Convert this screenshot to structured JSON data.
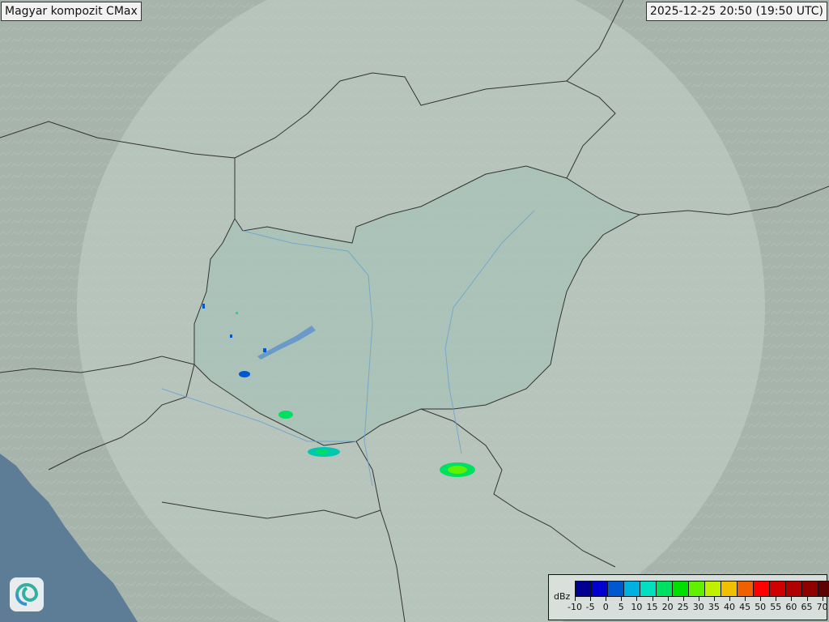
{
  "header": {
    "title": "Magyar kompozit  CMax",
    "timestamp": "2025-12-25 20:50 (19:50 UTC)"
  },
  "map": {
    "background_color": "#a6b4ab",
    "coverage_color": "#c3d1c9",
    "country_fill": "#a7c2b7",
    "sea_color": "#5d7d96",
    "border_color": "#333333",
    "river_color": "#6aa0d0"
  },
  "echoes": [
    {
      "id": "echo-sw-1",
      "color": "#00b0e0"
    },
    {
      "id": "echo-sw-2",
      "color": "#00e060"
    },
    {
      "id": "echo-drava",
      "color": "#00c8b0"
    },
    {
      "id": "echo-south",
      "color": "#00e060"
    },
    {
      "id": "echo-west",
      "color": "#0060d0"
    }
  ],
  "legend": {
    "unit": "dBz",
    "colors": [
      "#000090",
      "#0000d0",
      "#0058d0",
      "#00b0e0",
      "#00e0c0",
      "#00e060",
      "#00e000",
      "#60f000",
      "#c0f000",
      "#f0c000",
      "#f06000",
      "#ff0000",
      "#d00000",
      "#b00000",
      "#900000",
      "#600000"
    ],
    "ticks": [
      "-10",
      "-5",
      "0",
      "5",
      "10",
      "15",
      "20",
      "25",
      "30",
      "35",
      "40",
      "45",
      "50",
      "55",
      "60",
      "65",
      "70"
    ]
  },
  "logo": {
    "icon": "swirl-logo-icon"
  }
}
